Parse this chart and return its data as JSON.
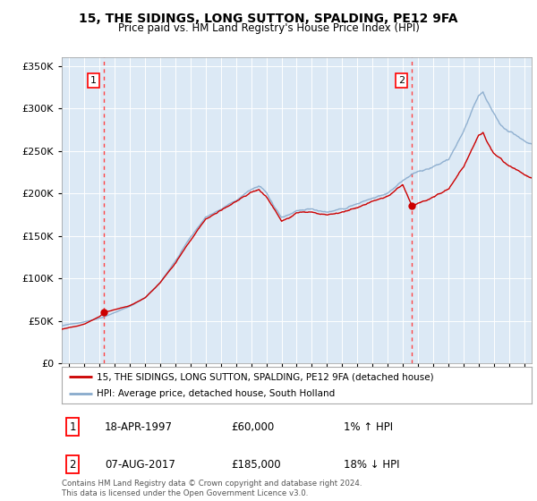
{
  "title": "15, THE SIDINGS, LONG SUTTON, SPALDING, PE12 9FA",
  "subtitle": "Price paid vs. HM Land Registry's House Price Index (HPI)",
  "legend_line1": "15, THE SIDINGS, LONG SUTTON, SPALDING, PE12 9FA (detached house)",
  "legend_line2": "HPI: Average price, detached house, South Holland",
  "annotation1_date": "18-APR-1997",
  "annotation1_price": "£60,000",
  "annotation1_hpi": "1% ↑ HPI",
  "annotation1_year": 1997.3,
  "annotation1_value": 60000,
  "annotation2_date": "07-AUG-2017",
  "annotation2_price": "£185,000",
  "annotation2_hpi": "18% ↓ HPI",
  "annotation2_year": 2017.6,
  "annotation2_value": 185000,
  "footer": "Contains HM Land Registry data © Crown copyright and database right 2024.\nThis data is licensed under the Open Government Licence v3.0.",
  "price_color": "#cc0000",
  "hpi_color": "#88aacc",
  "plot_bg_color": "#dce9f5",
  "ylim": [
    0,
    360000
  ],
  "xlim_start": 1994.5,
  "xlim_end": 2025.5
}
